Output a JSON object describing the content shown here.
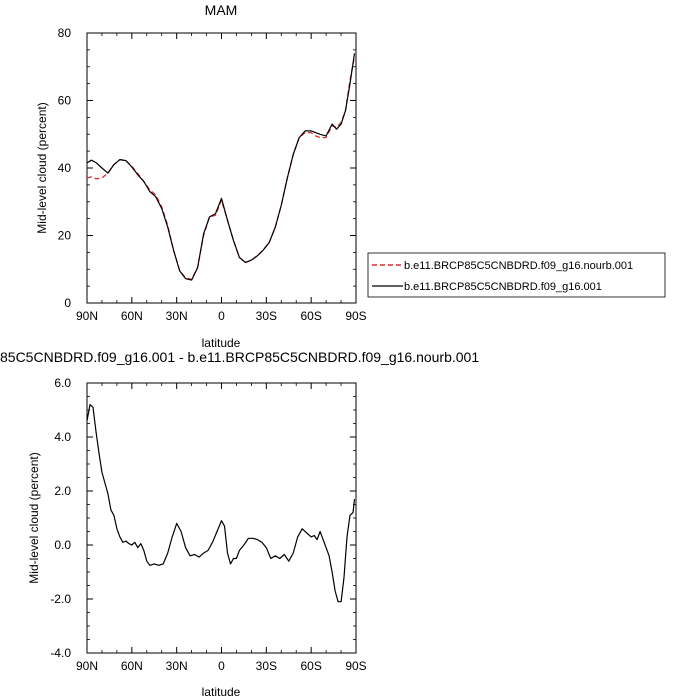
{
  "chart_data": [
    {
      "type": "line",
      "title": "MAM",
      "xlabel": "latitude",
      "ylabel": "Mid-level cloud (percent)",
      "xlim": [
        90,
        -90
      ],
      "ylim": [
        0,
        80
      ],
      "x_ticks": [
        90,
        60,
        30,
        0,
        -30,
        -60,
        -90
      ],
      "x_tick_labels": [
        "90N",
        "60N",
        "30N",
        "0",
        "30S",
        "60S",
        "90S"
      ],
      "y_ticks": [
        0,
        20,
        40,
        60,
        80
      ],
      "y_tick_labels": [
        "0",
        "20",
        "40",
        "60",
        "80"
      ],
      "legend": "right",
      "series": [
        {
          "name": "b.e11.BRCP85C5CNBDRD.f09_g16.nourb.001",
          "color": "#e8282b",
          "dash": true,
          "x": [
            90,
            87,
            84,
            80,
            76,
            72,
            68,
            64,
            60,
            56,
            52,
            48,
            44,
            40,
            36,
            32,
            28,
            24,
            20,
            16,
            12,
            8,
            4,
            0,
            -4,
            -8,
            -12,
            -16,
            -20,
            -24,
            -28,
            -32,
            -36,
            -40,
            -44,
            -48,
            -52,
            -56,
            -60,
            -63,
            -66,
            -70,
            -74,
            -77,
            -80,
            -83,
            -86,
            -89
          ],
          "values": [
            37,
            37.4,
            36.8,
            37,
            38.5,
            41,
            42.5,
            42.2,
            40.5,
            38.3,
            36,
            33.5,
            32,
            28.5,
            23,
            15.5,
            9.5,
            7.5,
            7,
            10.5,
            20,
            25.5,
            26,
            30.5,
            24.5,
            18.5,
            13.5,
            12,
            12.7,
            14,
            15.7,
            18,
            22.5,
            29,
            37,
            44,
            49,
            50.5,
            50.5,
            49.5,
            49,
            49,
            52.5,
            52,
            53.5,
            57,
            66,
            73
          ]
        },
        {
          "name": "b.e11.BRCP85C5CNBDRD.f09_g16.001",
          "color": "#000000",
          "dash": false,
          "x": [
            90,
            87,
            84,
            80,
            76,
            72,
            68,
            64,
            60,
            56,
            52,
            48,
            44,
            40,
            36,
            32,
            28,
            24,
            20,
            16,
            12,
            8,
            4,
            0,
            -4,
            -8,
            -12,
            -16,
            -20,
            -24,
            -28,
            -32,
            -36,
            -40,
            -44,
            -48,
            -52,
            -56,
            -60,
            -63,
            -66,
            -70,
            -74,
            -77,
            -80,
            -83,
            -86,
            -89
          ],
          "values": [
            41.5,
            42.3,
            41.6,
            40,
            38.5,
            41,
            42.5,
            42.2,
            40.3,
            38,
            36,
            33,
            31.5,
            28,
            22.5,
            15.5,
            9.5,
            7.2,
            6.8,
            10.5,
            20.5,
            25.5,
            26.5,
            31,
            24.5,
            18.5,
            13.5,
            12,
            12.7,
            14,
            15.7,
            18,
            22.5,
            29,
            37,
            44,
            49,
            51,
            51,
            50.5,
            50,
            49.5,
            53,
            51.5,
            53,
            57,
            65,
            74
          ]
        }
      ]
    },
    {
      "type": "line",
      "title": "85C5CNBDRD.f09_g16.001 - b.e11.BRCP85C5CNBDRD.f09_g16.nourb.001",
      "xlabel": "latitude",
      "ylabel": "Mid-level cloud (percent)",
      "xlim": [
        90,
        -90
      ],
      "ylim": [
        -4,
        6
      ],
      "x_ticks": [
        90,
        60,
        30,
        0,
        -30,
        -60,
        -90
      ],
      "x_tick_labels": [
        "90N",
        "60N",
        "30N",
        "0",
        "30S",
        "60S",
        "90S"
      ],
      "y_ticks": [
        -4,
        -2,
        0,
        2,
        4,
        6
      ],
      "y_tick_labels": [
        "-4.0",
        "-2.0",
        "0.0",
        "2.0",
        "4.0",
        "6.0"
      ],
      "series": [
        {
          "color": "#000000",
          "dash": false,
          "x": [
            90,
            88,
            86,
            84,
            82,
            80,
            78,
            76,
            74,
            72,
            70,
            68,
            66,
            64,
            62,
            60,
            58,
            56,
            54,
            52,
            50,
            48,
            45,
            42,
            39,
            36,
            33,
            30,
            27,
            24,
            21,
            18,
            15,
            12,
            9,
            6,
            3,
            0,
            -2,
            -4,
            -6,
            -8,
            -10,
            -12,
            -15,
            -18,
            -21,
            -24,
            -27,
            -30,
            -33,
            -36,
            -39,
            -42,
            -45,
            -48,
            -51,
            -54,
            -57,
            -60,
            -62,
            -64,
            -66,
            -68,
            -70,
            -72,
            -74,
            -76,
            -78,
            -80,
            -82,
            -84,
            -86,
            -88,
            -89
          ],
          "values": [
            4.6,
            5.2,
            5.1,
            4.2,
            3.4,
            2.7,
            2.3,
            1.9,
            1.3,
            1.1,
            0.6,
            0.3,
            0.1,
            0.15,
            0.05,
            0.0,
            0.1,
            -0.1,
            0.05,
            -0.2,
            -0.6,
            -0.75,
            -0.7,
            -0.75,
            -0.7,
            -0.3,
            0.3,
            0.8,
            0.5,
            -0.1,
            -0.4,
            -0.35,
            -0.45,
            -0.3,
            -0.2,
            0.1,
            0.5,
            0.9,
            0.7,
            -0.3,
            -0.7,
            -0.5,
            -0.5,
            -0.2,
            0.0,
            0.25,
            0.25,
            0.2,
            0.1,
            -0.1,
            -0.5,
            -0.4,
            -0.5,
            -0.35,
            -0.6,
            -0.3,
            0.3,
            0.6,
            0.45,
            0.3,
            0.35,
            0.2,
            0.5,
            0.2,
            -0.1,
            -0.4,
            -1.0,
            -1.7,
            -2.1,
            -2.1,
            -1.2,
            0.3,
            1.1,
            1.2,
            1.7
          ]
        }
      ]
    }
  ]
}
